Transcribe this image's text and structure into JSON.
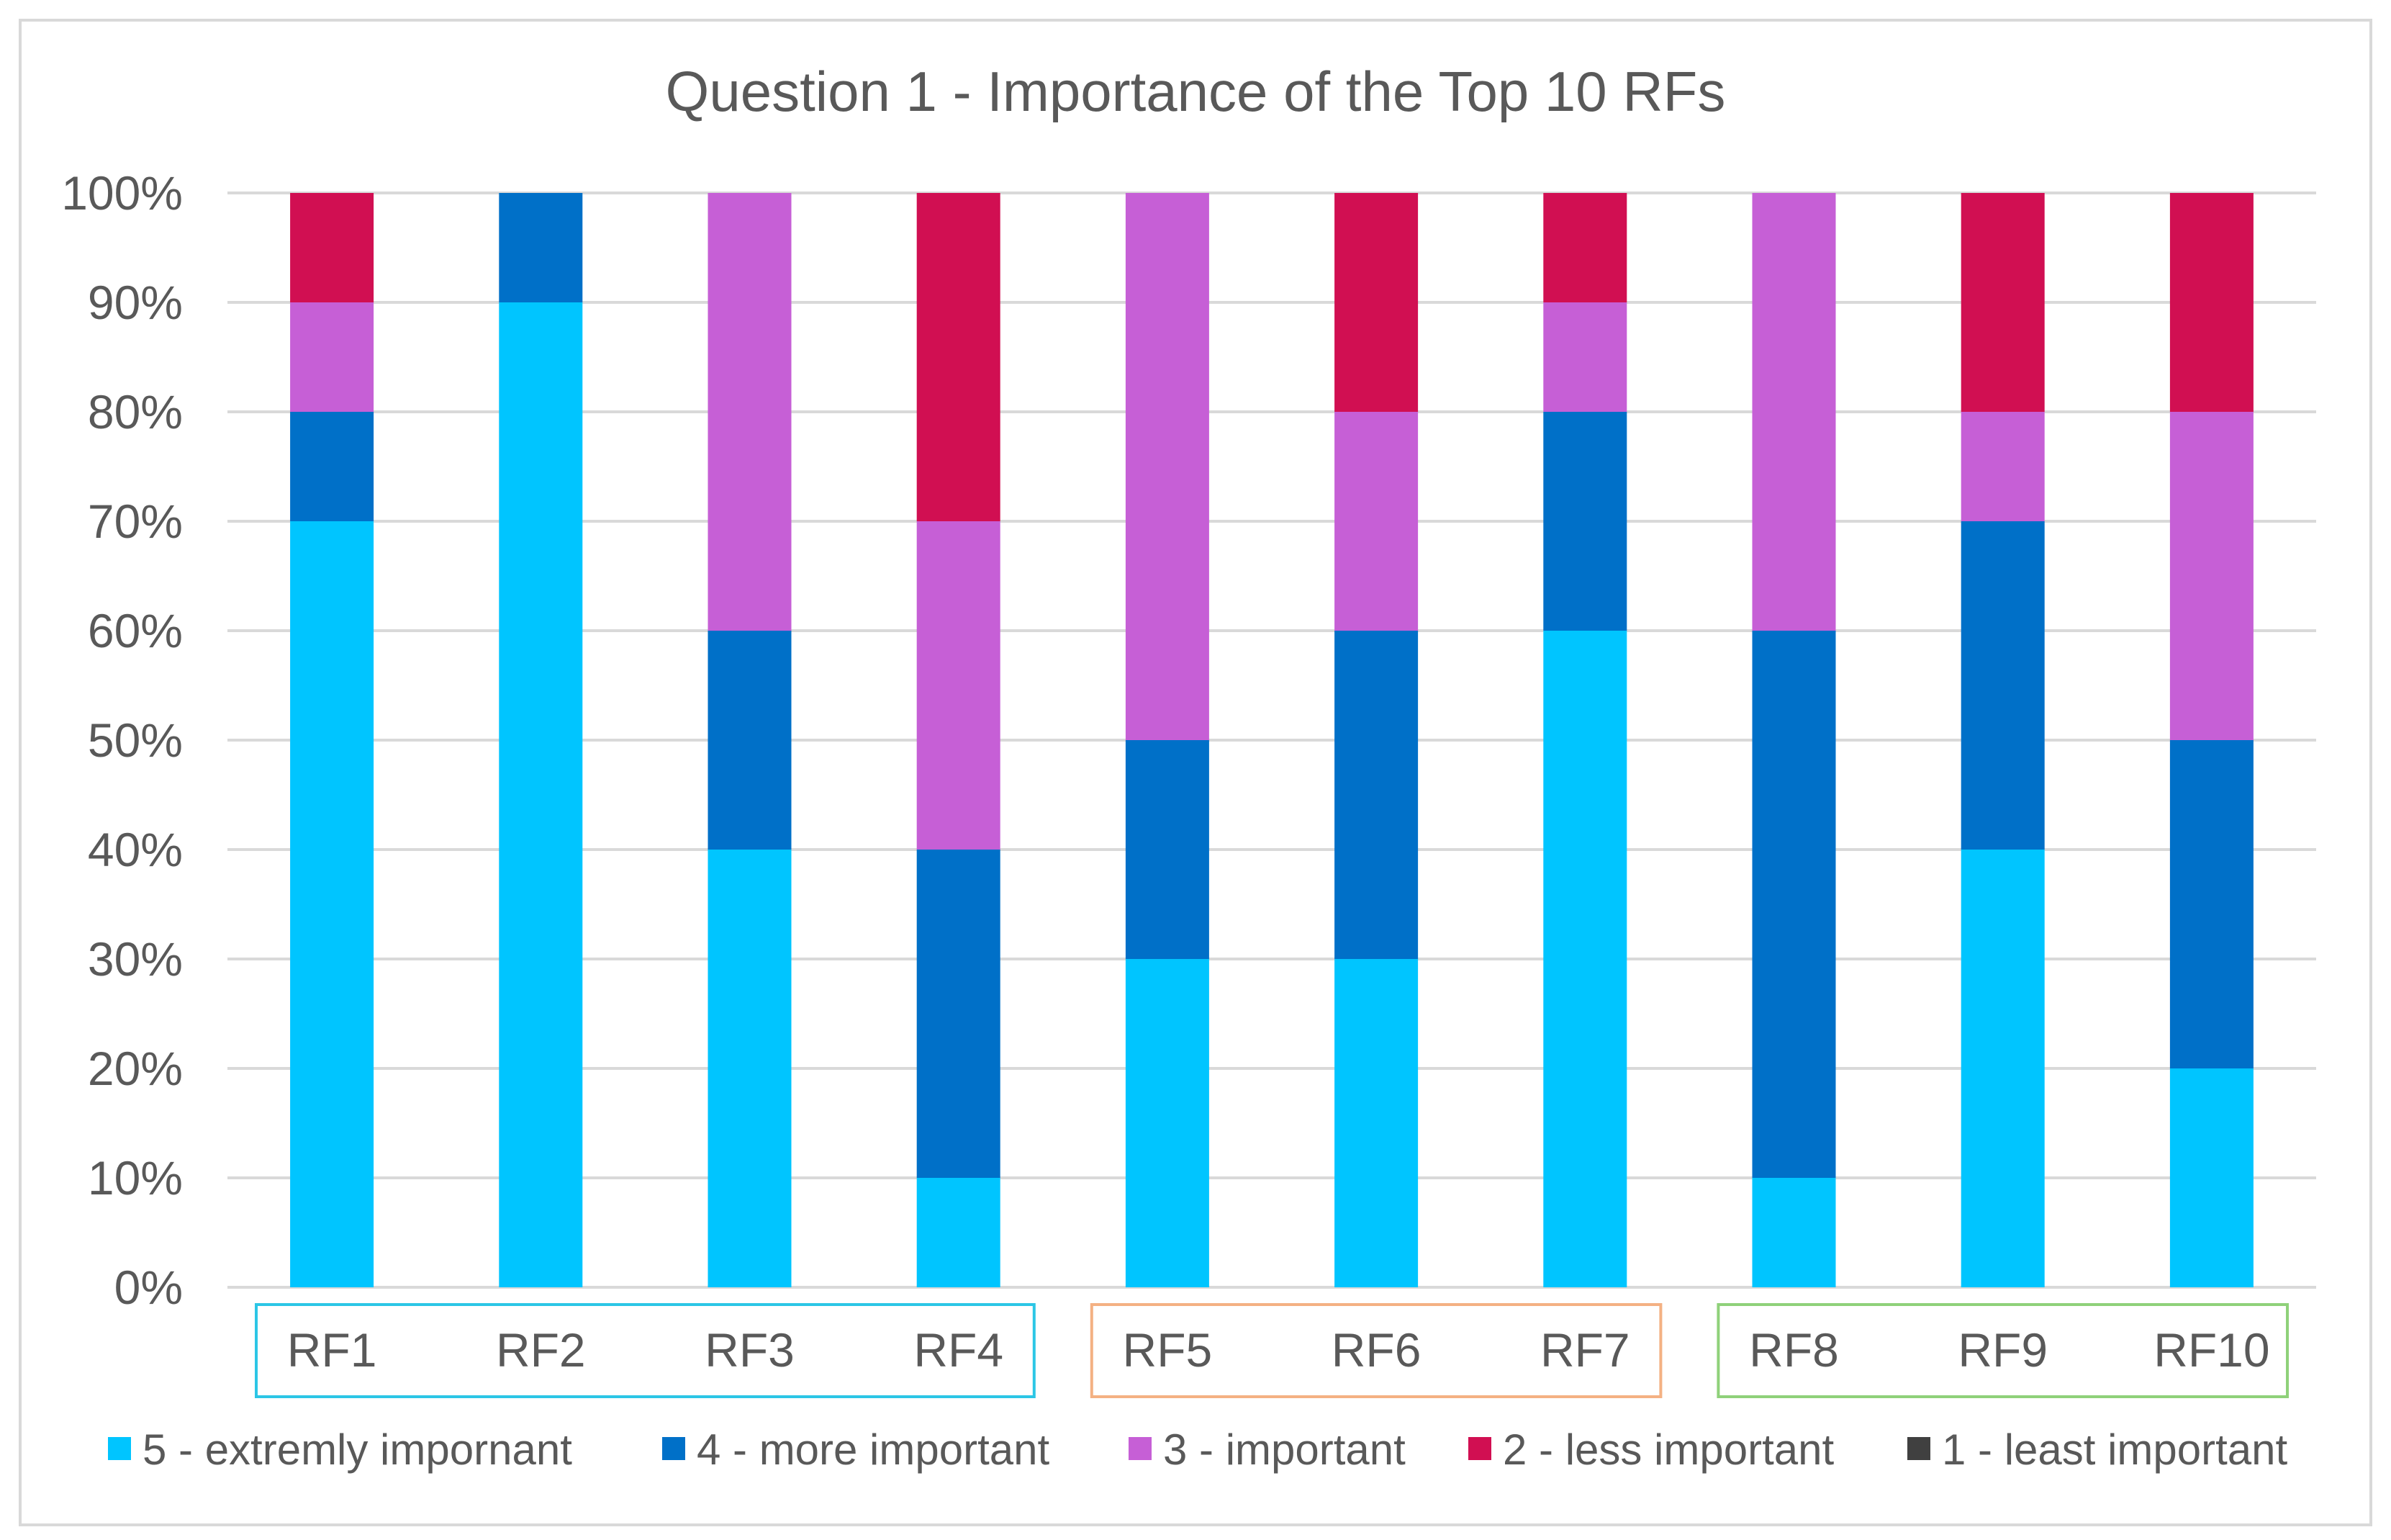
{
  "chart_data": {
    "type": "bar",
    "stacked": true,
    "title": "Question 1 - Importance of the Top 10 RFs",
    "xlabel": "",
    "ylabel": "",
    "ylim": [
      0,
      100
    ],
    "yticks": [
      "0%",
      "10%",
      "20%",
      "30%",
      "40%",
      "50%",
      "60%",
      "70%",
      "80%",
      "90%",
      "100%"
    ],
    "categories": [
      "RF1",
      "RF2",
      "RF3",
      "RF4",
      "RF5",
      "RF6",
      "RF7",
      "RF8",
      "RF9",
      "RF10"
    ],
    "series": [
      {
        "name": "5 - extremly impornant",
        "color": "#00c5ff",
        "values": [
          70,
          90,
          40,
          10,
          30,
          30,
          60,
          10,
          40,
          20
        ]
      },
      {
        "name": "4 - more important",
        "color": "#0070c8",
        "values": [
          10,
          10,
          20,
          30,
          20,
          30,
          20,
          50,
          30,
          30
        ]
      },
      {
        "name": "3 - important",
        "color": "#c65fd6",
        "values": [
          10,
          0,
          40,
          30,
          50,
          20,
          10,
          40,
          10,
          30
        ]
      },
      {
        "name": "2 - less important",
        "color": "#d10f52",
        "values": [
          10,
          0,
          0,
          30,
          0,
          20,
          10,
          0,
          20,
          20
        ]
      },
      {
        "name": "1 - least important",
        "color": "#404040",
        "values": [
          0,
          0,
          0,
          0,
          0,
          0,
          0,
          0,
          0,
          0
        ]
      }
    ],
    "category_groups": [
      {
        "categories": [
          "RF1",
          "RF2",
          "RF3",
          "RF4"
        ],
        "color": "#2cc6e6"
      },
      {
        "categories": [
          "RF5",
          "RF6",
          "RF7"
        ],
        "color": "#f4b183"
      },
      {
        "categories": [
          "RF8",
          "RF9",
          "RF10"
        ],
        "color": "#8fd17a"
      }
    ],
    "grid": true,
    "legend_position": "bottom"
  }
}
